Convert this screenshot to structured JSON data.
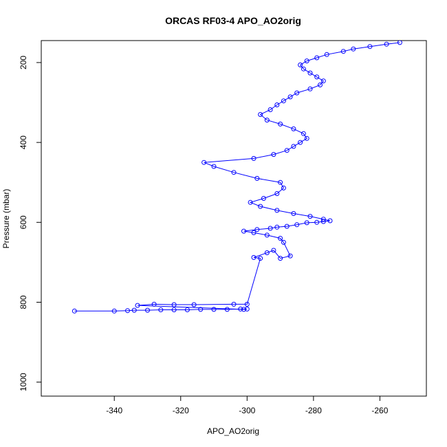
{
  "chart_data": {
    "type": "scatter",
    "title": "ORCAS RF03-4 APO_AO2orig",
    "xlabel": "APO_AO2orig",
    "ylabel": "Pressure (mbar)",
    "xlim": [
      -362,
      -246
    ],
    "ylim": [
      1035,
      145
    ],
    "y_reversed": true,
    "x_ticks": [
      -340,
      -320,
      -300,
      -280,
      -260
    ],
    "x_tick_labels": [
      "-340",
      "-320",
      "-300",
      "-280",
      "-260"
    ],
    "y_ticks": [
      200,
      400,
      600,
      800,
      1000
    ],
    "y_tick_labels": [
      "200",
      "400",
      "600",
      "800",
      "1000"
    ],
    "grid": false,
    "legend": "none",
    "series_color": "#0000ff",
    "marker": "open-circle",
    "connected": true,
    "series": [
      {
        "x": [
          -352,
          -340,
          -336,
          -334,
          -330,
          -326,
          -322,
          -318,
          -314,
          -310,
          -306,
          -302,
          -300,
          -301,
          -333,
          -328,
          -322,
          -316,
          -304,
          -300,
          -296,
          -298,
          -294,
          -292,
          -290,
          -287,
          -289,
          -290,
          -294,
          -298,
          -301,
          -297,
          -293,
          -291,
          -288,
          -285,
          -282,
          -279,
          -277,
          -275,
          -277,
          -281,
          -286,
          -291,
          -296,
          -299,
          -295,
          -291,
          -289,
          -290,
          -297,
          -304,
          -310,
          -313,
          -298,
          -292,
          -288,
          -286,
          -284,
          -282,
          -283,
          -286,
          -290,
          -294,
          -296,
          -293,
          -291,
          -289,
          -287,
          -285,
          -281,
          -278,
          -277,
          -279,
          -281,
          -283,
          -284,
          -282,
          -279,
          -276,
          -271,
          -268,
          -263,
          -258,
          -254
        ],
        "y": [
          822,
          822,
          821,
          820,
          820,
          819,
          819,
          819,
          818,
          818,
          818,
          817,
          817,
          818,
          808,
          805,
          806,
          806,
          805,
          805,
          690,
          688,
          676,
          670,
          690,
          684,
          650,
          640,
          632,
          626,
          622,
          618,
          615,
          612,
          610,
          606,
          601,
          600,
          598,
          596,
          592,
          585,
          578,
          570,
          560,
          550,
          540,
          528,
          514,
          500,
          490,
          475,
          460,
          450,
          440,
          430,
          420,
          410,
          400,
          390,
          378,
          366,
          354,
          344,
          330,
          318,
          306,
          296,
          286,
          276,
          266,
          256,
          246,
          236,
          226,
          216,
          206,
          196,
          188,
          180,
          172,
          166,
          160,
          154,
          150
        ]
      }
    ]
  }
}
